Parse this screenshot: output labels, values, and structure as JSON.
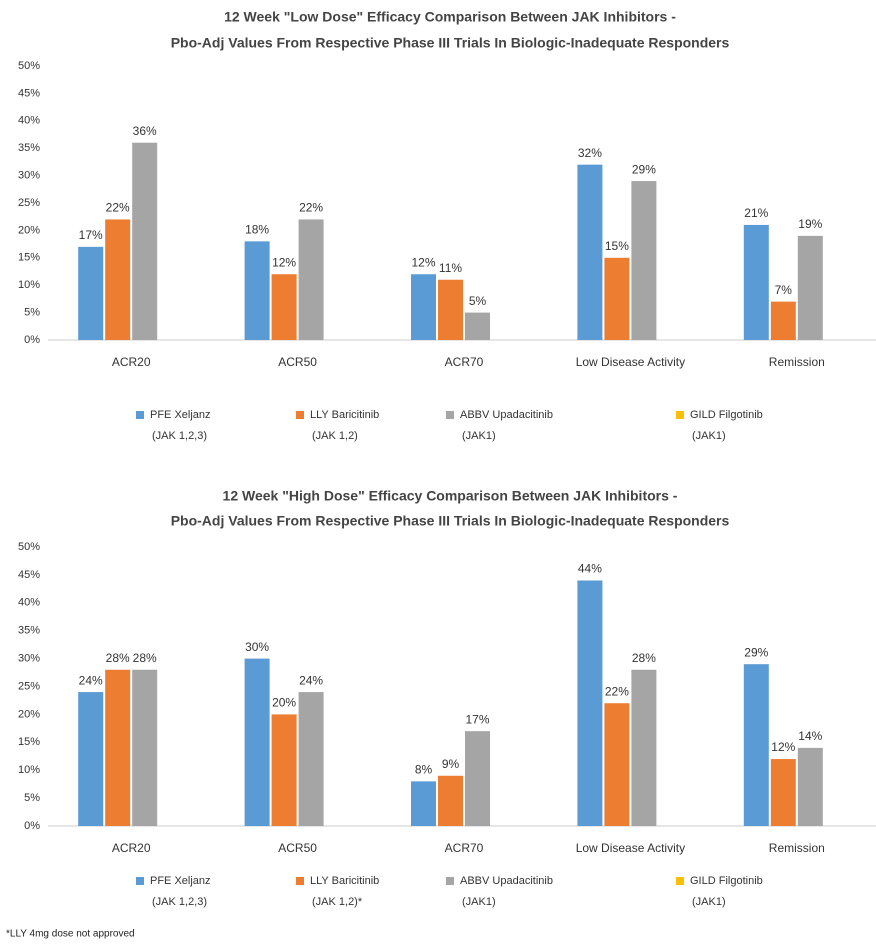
{
  "chart_data": [
    {
      "type": "bar",
      "title": [
        "12 Week \"Low Dose\" Efficacy Comparison Between JAK Inhibitors -",
        "Pbo-Adj Values From Respective Phase III Trials In Biologic-Inadequate Responders"
      ],
      "categories": [
        "ACR20",
        "ACR50",
        "ACR70",
        "Low Disease Activity",
        "Remission"
      ],
      "series": [
        {
          "name": "PFE Xeljanz (JAK 1,2,3)",
          "color": "#5B9BD5",
          "values": [
            17,
            18,
            12,
            32,
            21
          ],
          "value_labels": [
            "17%",
            "18%",
            "12%",
            "32%",
            "21%"
          ]
        },
        {
          "name": "LLY Baricitinib (JAK 1,2)",
          "color": "#ED7D31",
          "values": [
            22,
            12,
            11,
            15,
            7
          ],
          "value_labels": [
            "22%",
            "12%",
            "11%",
            "15%",
            "7%"
          ]
        },
        {
          "name": "ABBV Upadacitinib (JAK1)",
          "color": "#A5A5A5",
          "values": [
            36,
            22,
            5,
            29,
            19
          ],
          "value_labels": [
            "36%",
            "22%",
            "5%",
            "29%",
            "19%"
          ]
        },
        {
          "name": "GILD Filgotinib (JAK1)",
          "color": "#FFC000",
          "values": [
            null,
            null,
            null,
            null,
            null
          ]
        }
      ],
      "ylim": [
        0,
        50
      ],
      "yticks": [
        {
          "value": 0,
          "label": "0%"
        },
        {
          "value": 5,
          "label": "5%"
        },
        {
          "value": 10,
          "label": "10%"
        },
        {
          "value": 15,
          "label": "15%"
        },
        {
          "value": 20,
          "label": "20%"
        },
        {
          "value": 25,
          "label": "25%"
        },
        {
          "value": 30,
          "label": "30%"
        },
        {
          "value": 35,
          "label": "35%"
        },
        {
          "value": 40,
          "label": "40%"
        },
        {
          "value": 45,
          "label": "45%"
        },
        {
          "value": 50,
          "label": "50%"
        }
      ],
      "grid": false,
      "legend": "bottom"
    },
    {
      "type": "bar",
      "title": [
        "12 Week \"High Dose\" Efficacy Comparison Between JAK Inhibitors -",
        "Pbo-Adj Values From Respective Phase III Trials In Biologic-Inadequate Responders"
      ],
      "categories": [
        "ACR20",
        "ACR50",
        "ACR70",
        "Low Disease Activity",
        "Remission"
      ],
      "series": [
        {
          "name": "PFE Xeljanz (JAK 1,2,3)",
          "color": "#5B9BD5",
          "values": [
            24,
            30,
            8,
            44,
            29
          ],
          "value_labels": [
            "24%",
            "30%",
            "8%",
            "44%",
            "29%"
          ]
        },
        {
          "name": "LLY Baricitinib (JAK 1,2)*",
          "color": "#ED7D31",
          "values": [
            28,
            20,
            9,
            22,
            12
          ],
          "value_labels": [
            "28%",
            "20%",
            "9%",
            "22%",
            "12%"
          ]
        },
        {
          "name": "ABBV Upadacitinib (JAK1)",
          "color": "#A5A5A5",
          "values": [
            28,
            24,
            17,
            28,
            14
          ],
          "value_labels": [
            "28%",
            "24%",
            "17%",
            "28%",
            "14%"
          ]
        },
        {
          "name": "GILD Filgotinib (JAK1)",
          "color": "#FFC000",
          "values": [
            null,
            null,
            null,
            null,
            null
          ]
        }
      ],
      "ylim": [
        0,
        50
      ],
      "yticks": [
        {
          "value": 0,
          "label": "0%"
        },
        {
          "value": 5,
          "label": "5%"
        },
        {
          "value": 10,
          "label": "10%"
        },
        {
          "value": 15,
          "label": "15%"
        },
        {
          "value": 20,
          "label": "20%"
        },
        {
          "value": 25,
          "label": "25%"
        },
        {
          "value": 30,
          "label": "30%"
        },
        {
          "value": 35,
          "label": "35%"
        },
        {
          "value": 40,
          "label": "40%"
        },
        {
          "value": 45,
          "label": "45%"
        },
        {
          "value": 50,
          "label": "50%"
        }
      ],
      "grid": false,
      "legend": "bottom"
    }
  ],
  "footnote": "*LLY 4mg dose not approved"
}
